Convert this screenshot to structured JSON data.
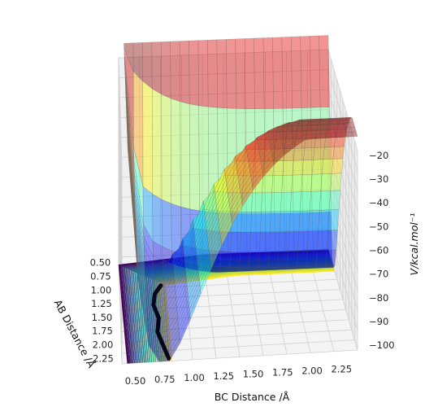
{
  "chart_data": {
    "type": "surface3d",
    "xlabel": "BC Distance /Å",
    "ylabel": "AB Distance /Å",
    "zlabel": "V/kcal.mol⁻¹",
    "x_ticks": [
      "0.50",
      "0.75",
      "1.00",
      "1.25",
      "1.50",
      "1.75",
      "2.00",
      "2.25"
    ],
    "y_ticks": [
      "0.50",
      "0.75",
      "1.00",
      "1.25",
      "1.50",
      "1.75",
      "2.00",
      "2.25"
    ],
    "z_ticks": [
      "−20",
      "−30",
      "−40",
      "−50",
      "−60",
      "−70",
      "−80",
      "−90",
      "−100"
    ],
    "xlim": [
      0.4,
      2.4
    ],
    "ylim": [
      0.4,
      2.35
    ],
    "zlim": [
      -102,
      -18
    ],
    "surface_colormap": "jet",
    "contour_colormap": "viridis",
    "grid": true,
    "trajectory": {
      "color": "#06061a",
      "points": [
        {
          "ab": 0.95,
          "bc": 0.78
        },
        {
          "ab": 1.1,
          "bc": 0.72
        },
        {
          "ab": 1.3,
          "bc": 0.7
        },
        {
          "ab": 1.55,
          "bc": 0.74
        },
        {
          "ab": 1.8,
          "bc": 0.72
        },
        {
          "ab": 2.05,
          "bc": 0.76
        },
        {
          "ab": 2.3,
          "bc": 0.8
        }
      ]
    }
  }
}
